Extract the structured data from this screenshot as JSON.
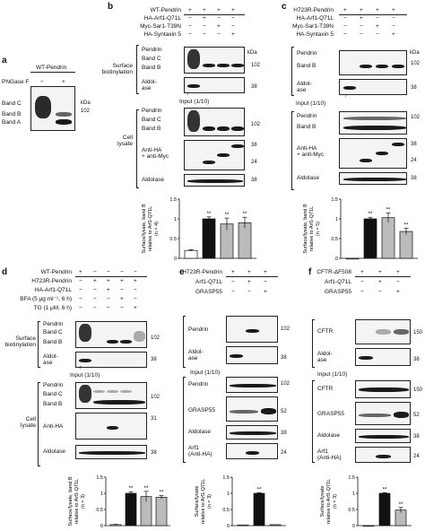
{
  "panels": {
    "a": {
      "letter": "a",
      "title": "WT-Pendrin",
      "treat": "PNGase F",
      "signs": [
        "−",
        "+"
      ],
      "bands": [
        "Band C",
        "Band B",
        "Band A"
      ],
      "kda_head": "kDa",
      "kda": [
        "102"
      ]
    },
    "b": {
      "letter": "b",
      "rows": [
        "WT-Pendrin",
        "HA-Arf1-Q71L",
        "Myc-Sar1-T39N",
        "HA-Syntaxin 5"
      ],
      "signs": [
        [
          "+",
          "+",
          "+",
          "+"
        ],
        [
          "−",
          "+",
          "−",
          "−"
        ],
        [
          "−",
          "−",
          "+",
          "−"
        ],
        [
          "−",
          "−",
          "−",
          "+"
        ]
      ],
      "surface_label": "Surface\nbiotinylation",
      "input_label": "Input (1/10)",
      "cell_label": "Cell\nlysate",
      "kda_head": "kDa",
      "blot_labels": {
        "pendrin": "Pendrin",
        "bandc": "Band C",
        "bandb": "Band B",
        "aldol": "Aldol-\nase",
        "antiha": "Anti-HA\n+ anti-Myc",
        "aldolase": "Aldolase"
      },
      "kda_surface": [
        "102",
        "38"
      ],
      "kda_lysate": [
        "102",
        "38",
        "24",
        "38"
      ]
    },
    "c": {
      "letter": "c",
      "rows": [
        "H723R-Pendrin",
        "HA-Arf1-Q71L",
        "Myc-Sar1-T39N",
        "HA-Syntaxin 5"
      ],
      "signs": [
        [
          "+",
          "+",
          "+",
          "+"
        ],
        [
          "−",
          "+",
          "−",
          "−"
        ],
        [
          "−",
          "−",
          "+",
          "−"
        ],
        [
          "−",
          "−",
          "−",
          "+"
        ]
      ],
      "input_label": "Input (1/10)",
      "kda_head": "kDa",
      "blot_labels": {
        "pendrin": "Pendrin",
        "bandb": "Band B",
        "aldol": "Aldol-\nase",
        "pendrin2": "Pendrin",
        "bandb2": "Band B",
        "antiha": "Anti-HA\n+ anti-Myc",
        "aldolase": "Aldolase"
      },
      "kda_surface": [
        "102",
        "38"
      ],
      "kda_lysate": [
        "102",
        "38",
        "24",
        "38"
      ]
    },
    "d": {
      "letter": "d",
      "rows": [
        "WT-Pendrin",
        "H723R-Pendrin",
        "HA-Arf1-Q71L",
        "BFA (5 μg ml⁻¹, 6 h)",
        "TG (1 μM, 6 h)"
      ],
      "signs": [
        [
          "+",
          "−",
          "−",
          "−",
          "−"
        ],
        [
          "−",
          "+",
          "+",
          "+",
          "+"
        ],
        [
          "−",
          "−",
          "+",
          "−",
          "−"
        ],
        [
          "−",
          "−",
          "−",
          "+",
          "−"
        ],
        [
          "−",
          "−",
          "−",
          "−",
          "+"
        ]
      ],
      "surface_label": "Surface\nbiotinylation",
      "input_label": "Input (1/10)",
      "cell_label": "Cell\nlysate",
      "blot_labels": {
        "pendrin": "Pendrin",
        "bandc": "Band C",
        "bandb": "Band B",
        "aldol": "Aldol-\nase",
        "pendrin2": "Pendrin",
        "bandc2": "Band C",
        "bandb2": "Band B",
        "antiha": "Anti-HA",
        "aldolase": "Aldolase"
      },
      "kda_surface": [
        "102",
        "38"
      ],
      "kda_lysate": [
        "102",
        "31",
        "38"
      ]
    },
    "e": {
      "letter": "e",
      "rows": [
        "H723R-Pendrin",
        "Arf1-Q71L",
        "GRASP55"
      ],
      "signs": [
        [
          "+",
          "+",
          "+"
        ],
        [
          "−",
          "+",
          "−"
        ],
        [
          "−",
          "−",
          "+"
        ]
      ],
      "input_label": "Input (1/10)",
      "blot_labels": {
        "pendrin": "Pendrin",
        "aldol": "Aldol-\nase",
        "pendrin2": "Pendrin",
        "grasp": "GRASP55",
        "aldolase": "Aldolase",
        "arf": "Arf1\n(Anti-HA)"
      },
      "kda_surface": [
        "102",
        "38"
      ],
      "kda_lysate": [
        "102",
        "52",
        "38",
        "24"
      ]
    },
    "f": {
      "letter": "f",
      "rows": [
        "CFTR-ΔF508",
        "Arf1-Q71L",
        "GRASP55"
      ],
      "signs": [
        [
          "+",
          "+",
          "+"
        ],
        [
          "−",
          "+",
          "−"
        ],
        [
          "−",
          "−",
          "+"
        ]
      ],
      "input_label": "Input (1/10)",
      "blot_labels": {
        "cftr": "CFTR",
        "aldol": "Aldol-\nase",
        "cftr2": "CFTR",
        "grasp": "GRASP55",
        "aldolase": "Aldolase",
        "arf": "Arf1\n(Anti-HA)"
      },
      "kda_surface": [
        "150",
        "38"
      ],
      "kda_lysate": [
        "150",
        "52",
        "38",
        "24"
      ]
    }
  },
  "chart_data": [
    {
      "panel": "b",
      "type": "bar",
      "ylabel": "Surface/lysate, band B\nrelative to Arf1-Q71L",
      "ylabel_n": "(n = 4)",
      "ylim": [
        0,
        1.5
      ],
      "yticks": [
        0,
        0.5,
        1.0,
        1.5
      ],
      "values": [
        0.2,
        1.0,
        0.87,
        0.9
      ],
      "errors": [
        0.02,
        0.05,
        0.15,
        0.14
      ],
      "colors": [
        "#ffffff",
        "#111111",
        "#bbbbbb",
        "#bbbbbb"
      ],
      "sig": [
        "",
        "**",
        "**",
        "**"
      ]
    },
    {
      "panel": "c",
      "type": "bar",
      "ylabel": "Surface/lysate, band B\nrelative to Arf1-Q71L",
      "ylabel_n": "(n = 5)",
      "ylim": [
        0,
        1.5
      ],
      "yticks": [
        0,
        0.5,
        1.0,
        1.5
      ],
      "values": [
        0.0,
        1.0,
        1.03,
        0.68
      ],
      "errors": [
        0,
        0.04,
        0.12,
        0.08
      ],
      "colors": [
        "#ffffff",
        "#111111",
        "#bbbbbb",
        "#bbbbbb"
      ],
      "sig": [
        "",
        "**",
        "**",
        "**"
      ]
    },
    {
      "panel": "d",
      "type": "bar",
      "ylabel": "Surface/lysate, band B\nrelative to Arf1-Q71L",
      "ylabel_n": "(n = 3)",
      "ylim": [
        0,
        1.5
      ],
      "yticks": [
        0,
        0.5,
        1.0,
        1.5
      ],
      "values": [
        0.03,
        1.0,
        0.9,
        0.88
      ],
      "errors": [
        0.01,
        0.05,
        0.16,
        0.05
      ],
      "colors": [
        "#ffffff",
        "#111111",
        "#bbbbbb",
        "#bbbbbb"
      ],
      "sig": [
        "",
        "**",
        "**",
        "**"
      ]
    },
    {
      "panel": "e",
      "type": "bar",
      "ylabel": "Surface/lysate\nrelative to Arf1-Q71L",
      "ylabel_n": "(n = 3)",
      "ylim": [
        0,
        1.5
      ],
      "yticks": [
        0,
        0.5,
        1.0,
        1.5
      ],
      "values": [
        0.02,
        1.0,
        0.03
      ],
      "errors": [
        0,
        0.02,
        0
      ],
      "colors": [
        "#ffffff",
        "#111111",
        "#bbbbbb"
      ],
      "sig": [
        "",
        "**",
        ""
      ]
    },
    {
      "panel": "f",
      "type": "bar",
      "ylabel": "Surface/lysate\nrelative to Arf1-Q71L",
      "ylabel_n": "(n = 3)",
      "ylim": [
        0,
        1.5
      ],
      "yticks": [
        0,
        0.5,
        1.0,
        1.5
      ],
      "values": [
        0.0,
        1.0,
        0.48
      ],
      "errors": [
        0,
        0.02,
        0.08
      ],
      "colors": [
        "#ffffff",
        "#111111",
        "#bbbbbb"
      ],
      "sig": [
        "",
        "**",
        "**"
      ]
    }
  ]
}
